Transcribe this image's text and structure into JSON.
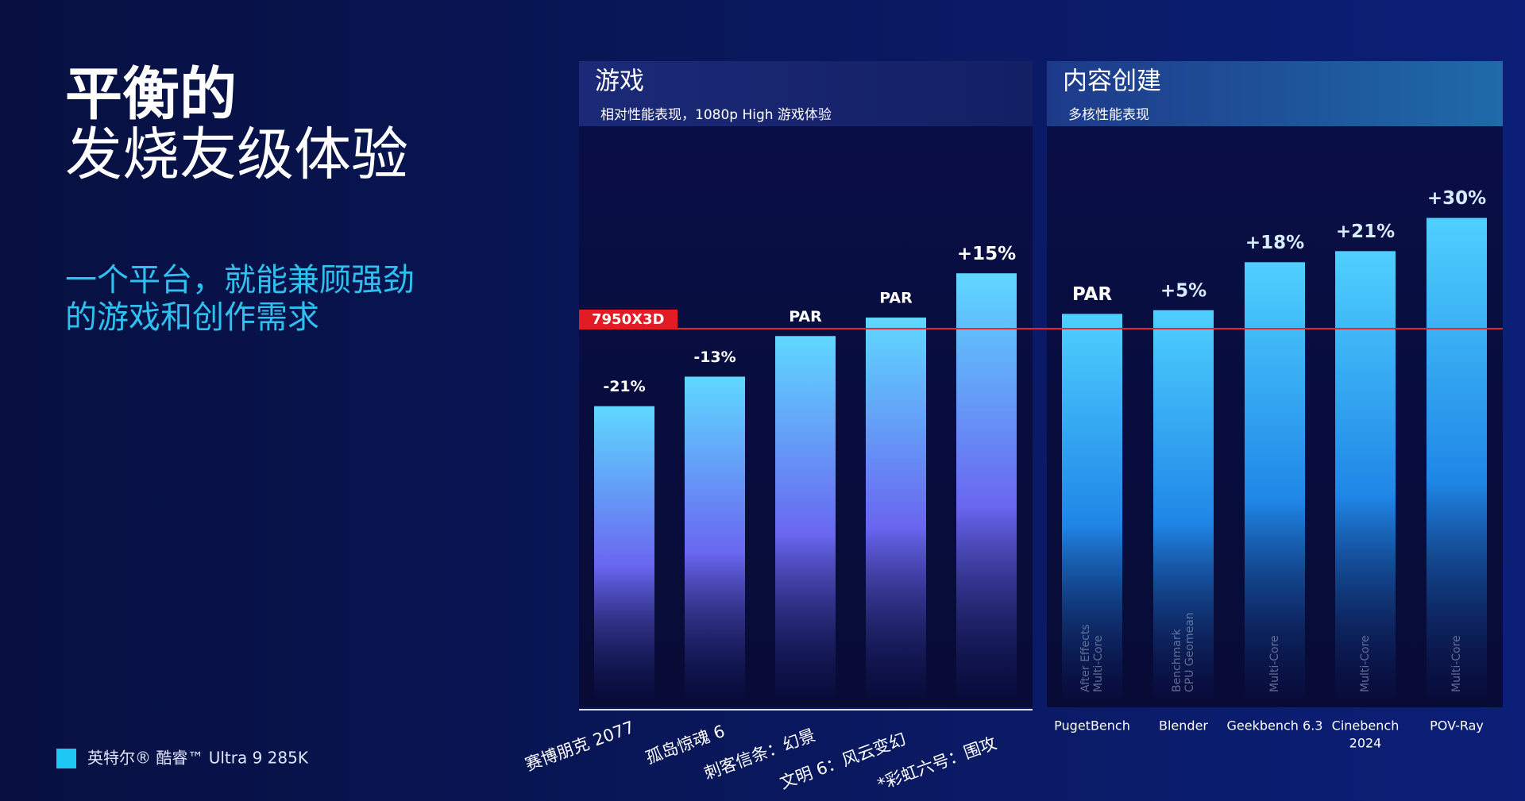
{
  "slide": {
    "title": [
      "平衡的",
      "发烧友级体验"
    ],
    "subtitle": [
      "一个平台，就能兼顾强劲",
      "的游戏和创作需求"
    ],
    "legend": "英特尔® 酷睿™ Ultra 9 285K",
    "legend_color": "#1ec8f5"
  },
  "chart_data": [
    {
      "type": "bar",
      "title": "游戏",
      "subtitle": "相对性能表现，1080p High 游戏体验",
      "categories": [
        "赛博朋克 2077",
        "孤岛惊魂 6",
        "刺客信条：幻景",
        "文明 6：风云变幻",
        "*彩虹六号：围攻"
      ],
      "values": [
        -21,
        -13,
        -2,
        3,
        15
      ],
      "value_labels": [
        "-21%",
        "-13%",
        "PAR",
        "PAR",
        "+15%"
      ],
      "ylim": [
        -100,
        40
      ],
      "baseline": {
        "value": 0,
        "label": "7950X3D"
      },
      "color": "#5fd8ff"
    },
    {
      "type": "bar",
      "title": "内容创建",
      "subtitle": "多核性能表现",
      "categories": [
        [
          "PugetBench"
        ],
        [
          "Blender"
        ],
        [
          "Geekbench 6.3"
        ],
        [
          "Cinebench",
          "2024"
        ],
        [
          "POV-Ray"
        ]
      ],
      "sublabels": [
        [
          "After Effects",
          "Multi-Core"
        ],
        [
          "Benchmark",
          "CPU Geomean"
        ],
        [
          "Multi-Core"
        ],
        [
          "Multi-Core"
        ],
        [
          "Multi-Core"
        ]
      ],
      "values": [
        4,
        5,
        18,
        21,
        30
      ],
      "value_labels": [
        "PAR",
        "+5%",
        "+18%",
        "+21%",
        "+30%"
      ],
      "ylim": [
        -100,
        40
      ],
      "baseline": {
        "value": 0,
        "label": "7950X3D"
      },
      "color": "#4fd0ff"
    }
  ]
}
